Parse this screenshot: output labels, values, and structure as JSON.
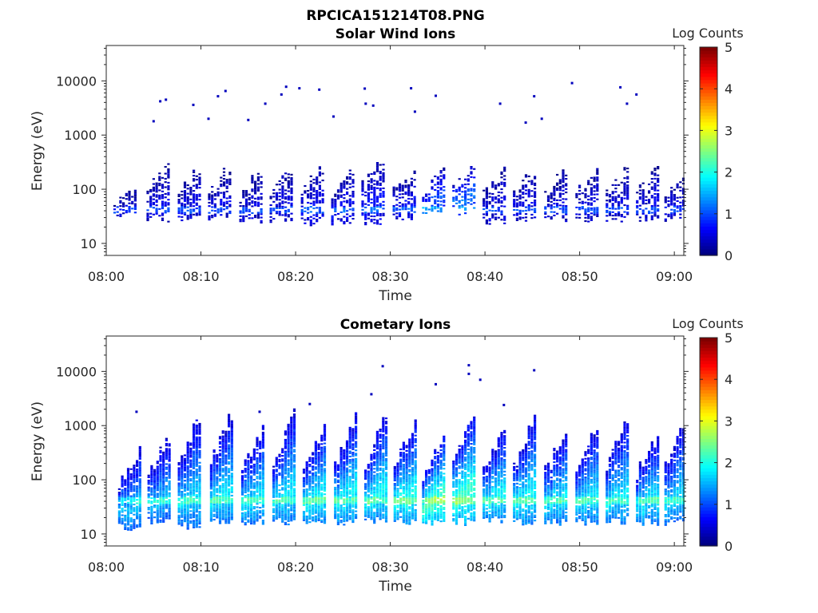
{
  "figure": {
    "title": "RPCICA151214T08.PNG"
  },
  "chart_data": [
    {
      "type": "heatmap",
      "title": "Solar Wind Ions",
      "xlabel": "Time",
      "ylabel": "Energy (eV)",
      "x_range": [
        "08:00",
        "09:01"
      ],
      "x_ticks": [
        "08:00",
        "08:10",
        "08:20",
        "08:30",
        "08:40",
        "08:50",
        "09:00"
      ],
      "y_scale": "log",
      "y_range": [
        6,
        45000
      ],
      "y_ticks": [
        "10",
        "100",
        "1000",
        "10000"
      ],
      "colorbar": {
        "label": "Log Counts",
        "range": [
          0,
          5
        ],
        "ticks": [
          "0",
          "1",
          "2",
          "3",
          "4",
          "5"
        ],
        "colormap": "jet"
      },
      "grid": false,
      "sweep_period_min": 3.2,
      "sweeps": [
        {
          "t": 2.0,
          "e_lo": 30,
          "e_hi": 100,
          "peak": 0.4
        },
        {
          "t": 5.5,
          "e_lo": 25,
          "e_hi": 300,
          "peak": 0.5
        },
        {
          "t": 8.8,
          "e_lo": 25,
          "e_hi": 250,
          "peak": 0.5
        },
        {
          "t": 12.0,
          "e_lo": 28,
          "e_hi": 230,
          "peak": 0.5
        },
        {
          "t": 15.3,
          "e_lo": 22,
          "e_hi": 220,
          "peak": 0.5
        },
        {
          "t": 18.5,
          "e_lo": 25,
          "e_hi": 250,
          "peak": 0.5
        },
        {
          "t": 21.8,
          "e_lo": 22,
          "e_hi": 260,
          "peak": 0.6
        },
        {
          "t": 25.0,
          "e_lo": 22,
          "e_hi": 220,
          "peak": 0.6
        },
        {
          "t": 28.2,
          "e_lo": 22,
          "e_hi": 400,
          "peak": 0.7
        },
        {
          "t": 31.5,
          "e_lo": 28,
          "e_hi": 220,
          "peak": 0.6
        },
        {
          "t": 34.6,
          "e_lo": 35,
          "e_hi": 200,
          "peak": 1.1
        },
        {
          "t": 37.8,
          "e_lo": 35,
          "e_hi": 220,
          "peak": 1.2
        },
        {
          "t": 41.0,
          "e_lo": 22,
          "e_hi": 220,
          "peak": 0.5
        },
        {
          "t": 44.2,
          "e_lo": 25,
          "e_hi": 220,
          "peak": 0.5
        },
        {
          "t": 47.5,
          "e_lo": 25,
          "e_hi": 230,
          "peak": 0.5
        },
        {
          "t": 50.8,
          "e_lo": 25,
          "e_hi": 230,
          "peak": 0.5
        },
        {
          "t": 54.0,
          "e_lo": 25,
          "e_hi": 220,
          "peak": 0.5
        },
        {
          "t": 57.2,
          "e_lo": 25,
          "e_hi": 220,
          "peak": 0.5
        },
        {
          "t": 60.2,
          "e_lo": 25,
          "e_hi": 220,
          "peak": 0.5
        }
      ],
      "scatter_points": [
        [
          5.0,
          1800
        ],
        [
          5.7,
          4200
        ],
        [
          6.3,
          4500
        ],
        [
          9.2,
          3600
        ],
        [
          10.8,
          2000
        ],
        [
          11.8,
          5200
        ],
        [
          12.6,
          6500
        ],
        [
          15.0,
          1900
        ],
        [
          16.8,
          3800
        ],
        [
          18.5,
          5600
        ],
        [
          19.0,
          7800
        ],
        [
          20.4,
          7300
        ],
        [
          22.5,
          6900
        ],
        [
          24.0,
          2200
        ],
        [
          27.3,
          7200
        ],
        [
          27.4,
          3800
        ],
        [
          28.2,
          3500
        ],
        [
          32.2,
          7300
        ],
        [
          32.6,
          2700
        ],
        [
          34.8,
          5300
        ],
        [
          41.6,
          3800
        ],
        [
          45.2,
          5200
        ],
        [
          49.2,
          9100
        ],
        [
          54.3,
          7600
        ],
        [
          55.0,
          3800
        ],
        [
          56.0,
          5600
        ],
        [
          44.3,
          1700
        ],
        [
          46.0,
          2000
        ]
      ]
    },
    {
      "type": "heatmap",
      "title": "Cometary Ions",
      "xlabel": "Time",
      "ylabel": "Energy (eV)",
      "x_range": [
        "08:00",
        "09:01"
      ],
      "x_ticks": [
        "08:00",
        "08:10",
        "08:20",
        "08:30",
        "08:40",
        "08:50",
        "09:00"
      ],
      "y_scale": "log",
      "y_range": [
        6,
        45000
      ],
      "y_ticks": [
        "10",
        "100",
        "1000",
        "10000"
      ],
      "colorbar": {
        "label": "Log Counts",
        "range": [
          0,
          5
        ],
        "ticks": [
          "0",
          "1",
          "2",
          "3",
          "4",
          "5"
        ],
        "colormap": "jet"
      },
      "grid": false,
      "sweep_period_min": 3.2,
      "sweeps": [
        {
          "t": 2.5,
          "e_lo": 12,
          "e_hi": 350,
          "peak": 1.6
        },
        {
          "t": 5.6,
          "e_lo": 15,
          "e_hi": 600,
          "peak": 1.6
        },
        {
          "t": 8.8,
          "e_lo": 12,
          "e_hi": 1500,
          "peak": 1.7
        },
        {
          "t": 12.2,
          "e_lo": 15,
          "e_hi": 1600,
          "peak": 1.8
        },
        {
          "t": 15.5,
          "e_lo": 15,
          "e_hi": 900,
          "peak": 1.8
        },
        {
          "t": 18.8,
          "e_lo": 15,
          "e_hi": 1500,
          "peak": 1.8
        },
        {
          "t": 22.0,
          "e_lo": 15,
          "e_hi": 900,
          "peak": 1.9
        },
        {
          "t": 25.3,
          "e_lo": 15,
          "e_hi": 1500,
          "peak": 1.9
        },
        {
          "t": 28.5,
          "e_lo": 15,
          "e_hi": 1500,
          "peak": 1.9
        },
        {
          "t": 31.6,
          "e_lo": 15,
          "e_hi": 1200,
          "peak": 2.0
        },
        {
          "t": 34.6,
          "e_lo": 15,
          "e_hi": 600,
          "peak": 2.3
        },
        {
          "t": 37.8,
          "e_lo": 15,
          "e_hi": 1600,
          "peak": 2.2
        },
        {
          "t": 41.0,
          "e_lo": 15,
          "e_hi": 900,
          "peak": 1.9
        },
        {
          "t": 44.2,
          "e_lo": 15,
          "e_hi": 1400,
          "peak": 1.9
        },
        {
          "t": 47.5,
          "e_lo": 15,
          "e_hi": 800,
          "peak": 1.8
        },
        {
          "t": 50.8,
          "e_lo": 15,
          "e_hi": 900,
          "peak": 1.8
        },
        {
          "t": 54.0,
          "e_lo": 15,
          "e_hi": 1300,
          "peak": 1.8
        },
        {
          "t": 57.2,
          "e_lo": 15,
          "e_hi": 700,
          "peak": 1.8
        },
        {
          "t": 60.2,
          "e_lo": 15,
          "e_hi": 1200,
          "peak": 1.7
        }
      ],
      "scatter_points": [
        [
          3.2,
          1800
        ],
        [
          29.2,
          12500
        ],
        [
          34.8,
          5800
        ],
        [
          38.3,
          13000
        ],
        [
          38.3,
          9000
        ],
        [
          45.2,
          10500
        ],
        [
          39.5,
          7000
        ],
        [
          42.0,
          2400
        ],
        [
          16.2,
          1800
        ],
        [
          21.5,
          2500
        ],
        [
          28.0,
          3800
        ]
      ]
    }
  ]
}
